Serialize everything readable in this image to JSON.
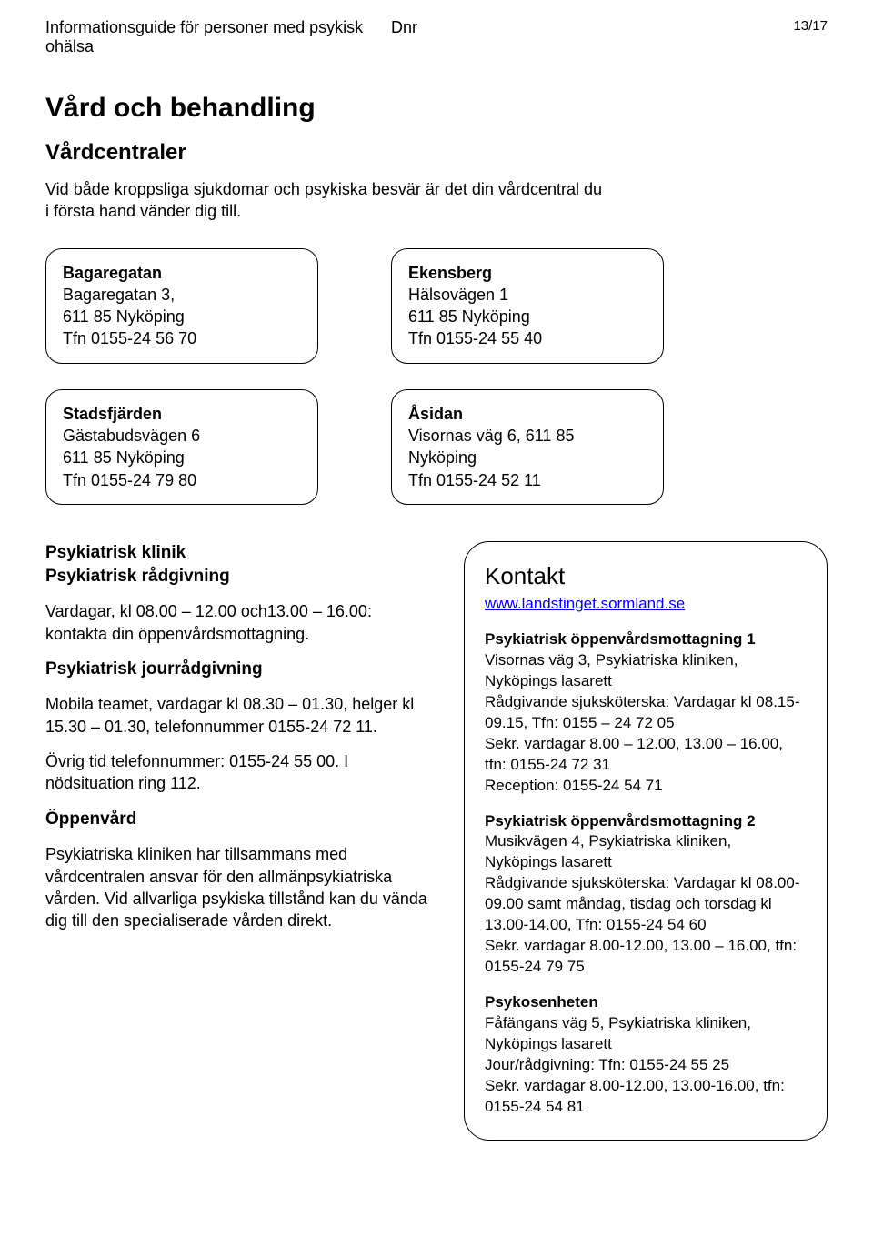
{
  "header": {
    "title_line1": "Informationsguide för personer med psykisk",
    "title_line2": "ohälsa",
    "dnr": "Dnr",
    "page_num": "13/17"
  },
  "main": {
    "h1": "Vård och behandling",
    "h2": "Vårdcentraler",
    "intro": "Vid både kroppsliga sjukdomar och psykiska besvär är det din vårdcentral du i första hand vänder dig till."
  },
  "cards": {
    "row1": [
      {
        "title": "Bagaregatan",
        "line1": "Bagaregatan 3,",
        "line2": "611 85 Nyköping",
        "line3": "Tfn 0155-24 56 70"
      },
      {
        "title": "Ekensberg",
        "line1": "Hälsovägen 1",
        "line2": "611 85 Nyköping",
        "line3": "Tfn 0155-24 55 40"
      }
    ],
    "row2": [
      {
        "title": "Stadsfjärden",
        "line1": "Gästabudsvägen 6",
        "line2": "611 85 Nyköping",
        "line3": "Tfn 0155-24 79 80"
      },
      {
        "title": "Åsidan",
        "line1": "Visornas väg 6, 611 85",
        "line2": "Nyköping",
        "line3": "Tfn 0155-24 52 11"
      }
    ]
  },
  "left": {
    "klinik_title": "Psykiatrisk klinik",
    "radgivning_title": "Psykiatrisk rådgivning",
    "radgivning_body": "Vardagar, kl 08.00 – 12.00 och13.00 – 16.00: kontakta din öppenvårdsmottagning.",
    "jourradgivning_title": "Psykiatrisk jourrådgivning",
    "jourradgivning_body1": "Mobila teamet, vardagar kl 08.30 – 01.30, helger kl 15.30 – 01.30, telefonnummer 0155-24 72 11.",
    "jourradgivning_body2": "Övrig tid telefonnummer: 0155-24 55 00. I nödsituation ring 112.",
    "oppenvard_title": "Öppenvård",
    "oppenvard_body": "Psykiatriska kliniken har tillsammans med vårdcentralen ansvar för den allmänpsykiatriska vården. Vid allvarliga psykiska tillstånd kan du vända dig till den specialiserade vården direkt."
  },
  "right": {
    "kontakt": "Kontakt",
    "link_text": "www.landstinget.sormland.se",
    "m1_title": "Psykiatrisk öppenvårdsmottagning 1",
    "m1_body": "Visornas väg 3, Psykiatriska kliniken, Nyköpings lasarett\nRådgivande sjuksköterska: Vardagar kl 08.15-09.15,  Tfn: 0155 – 24 72 05\nSekr. vardagar 8.00 – 12.00, 13.00 – 16.00, tfn: 0155-24 72 31\nReception: 0155-24 54 71",
    "m2_title": "Psykiatrisk öppenvårdsmottagning 2",
    "m2_body": "Musikvägen 4, Psykiatriska kliniken, Nyköpings lasarett\nRådgivande sjuksköterska: Vardagar kl 08.00-09.00  samt måndag, tisdag och torsdag kl 13.00-14.00,  Tfn: 0155-24 54  60\nSekr. vardagar 8.00-12.00, 13.00 – 16.00, tfn: 0155-24 79 75",
    "m3_title": "Psykosenheten",
    "m3_body": "Fåfängans väg 5, Psykiatriska kliniken, Nyköpings lasarett\nJour/rådgivning: Tfn: 0155-24 55 25\nSekr. vardagar 8.00-12.00, 13.00-16.00, tfn: 0155-24 54 81"
  }
}
